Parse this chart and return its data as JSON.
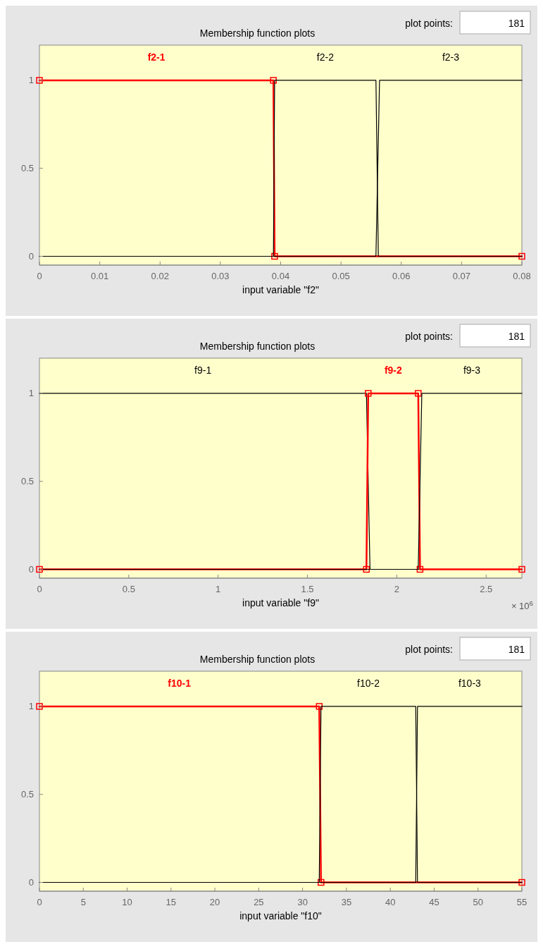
{
  "chart_data": [
    {
      "type": "line",
      "title": "Membership function plots",
      "xlabel": "input variable \"f2\"",
      "xlim": [
        0,
        0.08
      ],
      "xticks": [
        0,
        0.01,
        0.02,
        0.03,
        0.04,
        0.05,
        0.06,
        0.07,
        0.08
      ],
      "ylim": [
        -0.05,
        1.2
      ],
      "yticks": [
        0,
        0.5,
        1
      ],
      "grid": false,
      "legend": false,
      "annotations": [
        "plot points:",
        "181"
      ],
      "series": [
        {
          "name": "f2-1",
          "color": "#ff0000",
          "marker": "square",
          "x": [
            0,
            0.0388,
            0.039,
            0.08
          ],
          "values": [
            1,
            1,
            0,
            0
          ]
        },
        {
          "name": "f2-2",
          "color": "#000000",
          "x": [
            0,
            0.0388,
            0.039,
            0.0558,
            0.0562,
            0.08
          ],
          "values": [
            0,
            0,
            1,
            1,
            0,
            0
          ]
        },
        {
          "name": "f2-3",
          "color": "#000000",
          "x": [
            0,
            0.0558,
            0.0564,
            0.08
          ],
          "values": [
            0,
            0,
            1,
            1
          ]
        }
      ]
    },
    {
      "type": "line",
      "title": "Membership function plots",
      "xlabel": "input variable \"f9\"",
      "xlim": [
        0,
        2.7
      ],
      "xticks": [
        0,
        0.5,
        1,
        1.5,
        2,
        2.5
      ],
      "ylim": [
        -0.05,
        1.2
      ],
      "yticks": [
        0,
        0.5,
        1
      ],
      "grid": false,
      "legend": false,
      "annotations": [
        "plot points:",
        "181",
        "× 10$^{6}$"
      ],
      "series": [
        {
          "name": "f9-1",
          "color": "#000000",
          "x": [
            0,
            1.83,
            1.85,
            2.7
          ],
          "values": [
            1,
            1,
            0,
            0
          ]
        },
        {
          "name": "f9-2",
          "color": "#ff0000",
          "marker": "square",
          "x": [
            0,
            1.83,
            1.84,
            2.12,
            2.13,
            2.7
          ],
          "values": [
            0,
            0,
            1,
            1,
            0,
            0
          ]
        },
        {
          "name": "f9-3",
          "color": "#000000",
          "x": [
            0,
            2.12,
            2.14,
            2.7
          ],
          "values": [
            0,
            0,
            1,
            1
          ]
        }
      ]
    },
    {
      "type": "line",
      "title": "Membership function plots",
      "xlabel": "input variable \"f10\"",
      "xlim": [
        0,
        55
      ],
      "xticks": [
        0,
        5,
        10,
        15,
        20,
        25,
        30,
        35,
        40,
        45,
        50,
        55
      ],
      "ylim": [
        -0.05,
        1.2
      ],
      "yticks": [
        0,
        0.5,
        1
      ],
      "grid": false,
      "legend": false,
      "annotations": [
        "plot points:",
        "181"
      ],
      "series": [
        {
          "name": "f10-1",
          "color": "#ff0000",
          "marker": "square",
          "x": [
            0,
            31.9,
            32.1,
            55
          ],
          "values": [
            1,
            1,
            0,
            0
          ]
        },
        {
          "name": "f10-2",
          "color": "#000000",
          "x": [
            0,
            31.9,
            32.1,
            42.9,
            43.1,
            55
          ],
          "values": [
            0,
            0,
            1,
            1,
            0,
            0
          ]
        },
        {
          "name": "f10-3",
          "color": "#000000",
          "x": [
            0,
            42.9,
            43.1,
            55
          ],
          "values": [
            0,
            0,
            1,
            1
          ]
        }
      ]
    }
  ]
}
